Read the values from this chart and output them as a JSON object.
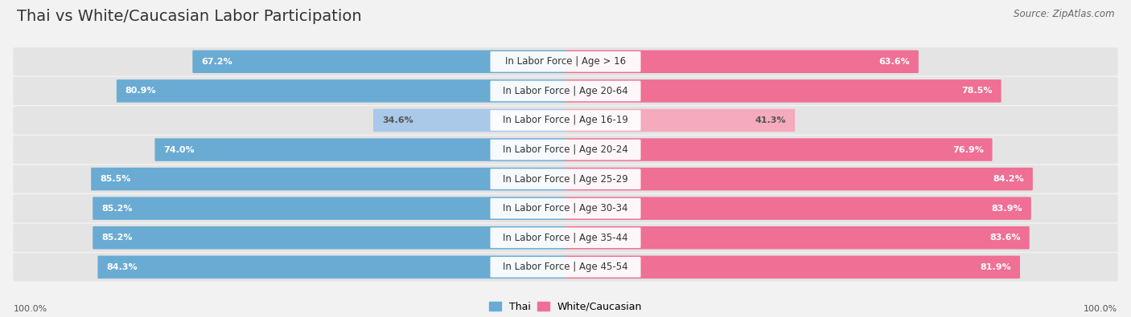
{
  "title": "Thai vs White/Caucasian Labor Participation",
  "source": "Source: ZipAtlas.com",
  "categories": [
    "In Labor Force | Age > 16",
    "In Labor Force | Age 20-64",
    "In Labor Force | Age 16-19",
    "In Labor Force | Age 20-24",
    "In Labor Force | Age 25-29",
    "In Labor Force | Age 30-34",
    "In Labor Force | Age 35-44",
    "In Labor Force | Age 45-54"
  ],
  "thai_values": [
    67.2,
    80.9,
    34.6,
    74.0,
    85.5,
    85.2,
    85.2,
    84.3
  ],
  "white_values": [
    63.6,
    78.5,
    41.3,
    76.9,
    84.2,
    83.9,
    83.6,
    81.9
  ],
  "thai_color_strong": "#6aabd4",
  "thai_color_light": "#aac8e8",
  "white_color_strong": "#ef6f95",
  "white_color_light": "#f5aabe",
  "background_color": "#f2f2f2",
  "row_bg_color": "#e4e4e4",
  "max_value": 100.0,
  "title_fontsize": 14,
  "label_fontsize": 8.5,
  "value_fontsize": 8,
  "legend_fontsize": 9,
  "axis_label_fontsize": 8
}
